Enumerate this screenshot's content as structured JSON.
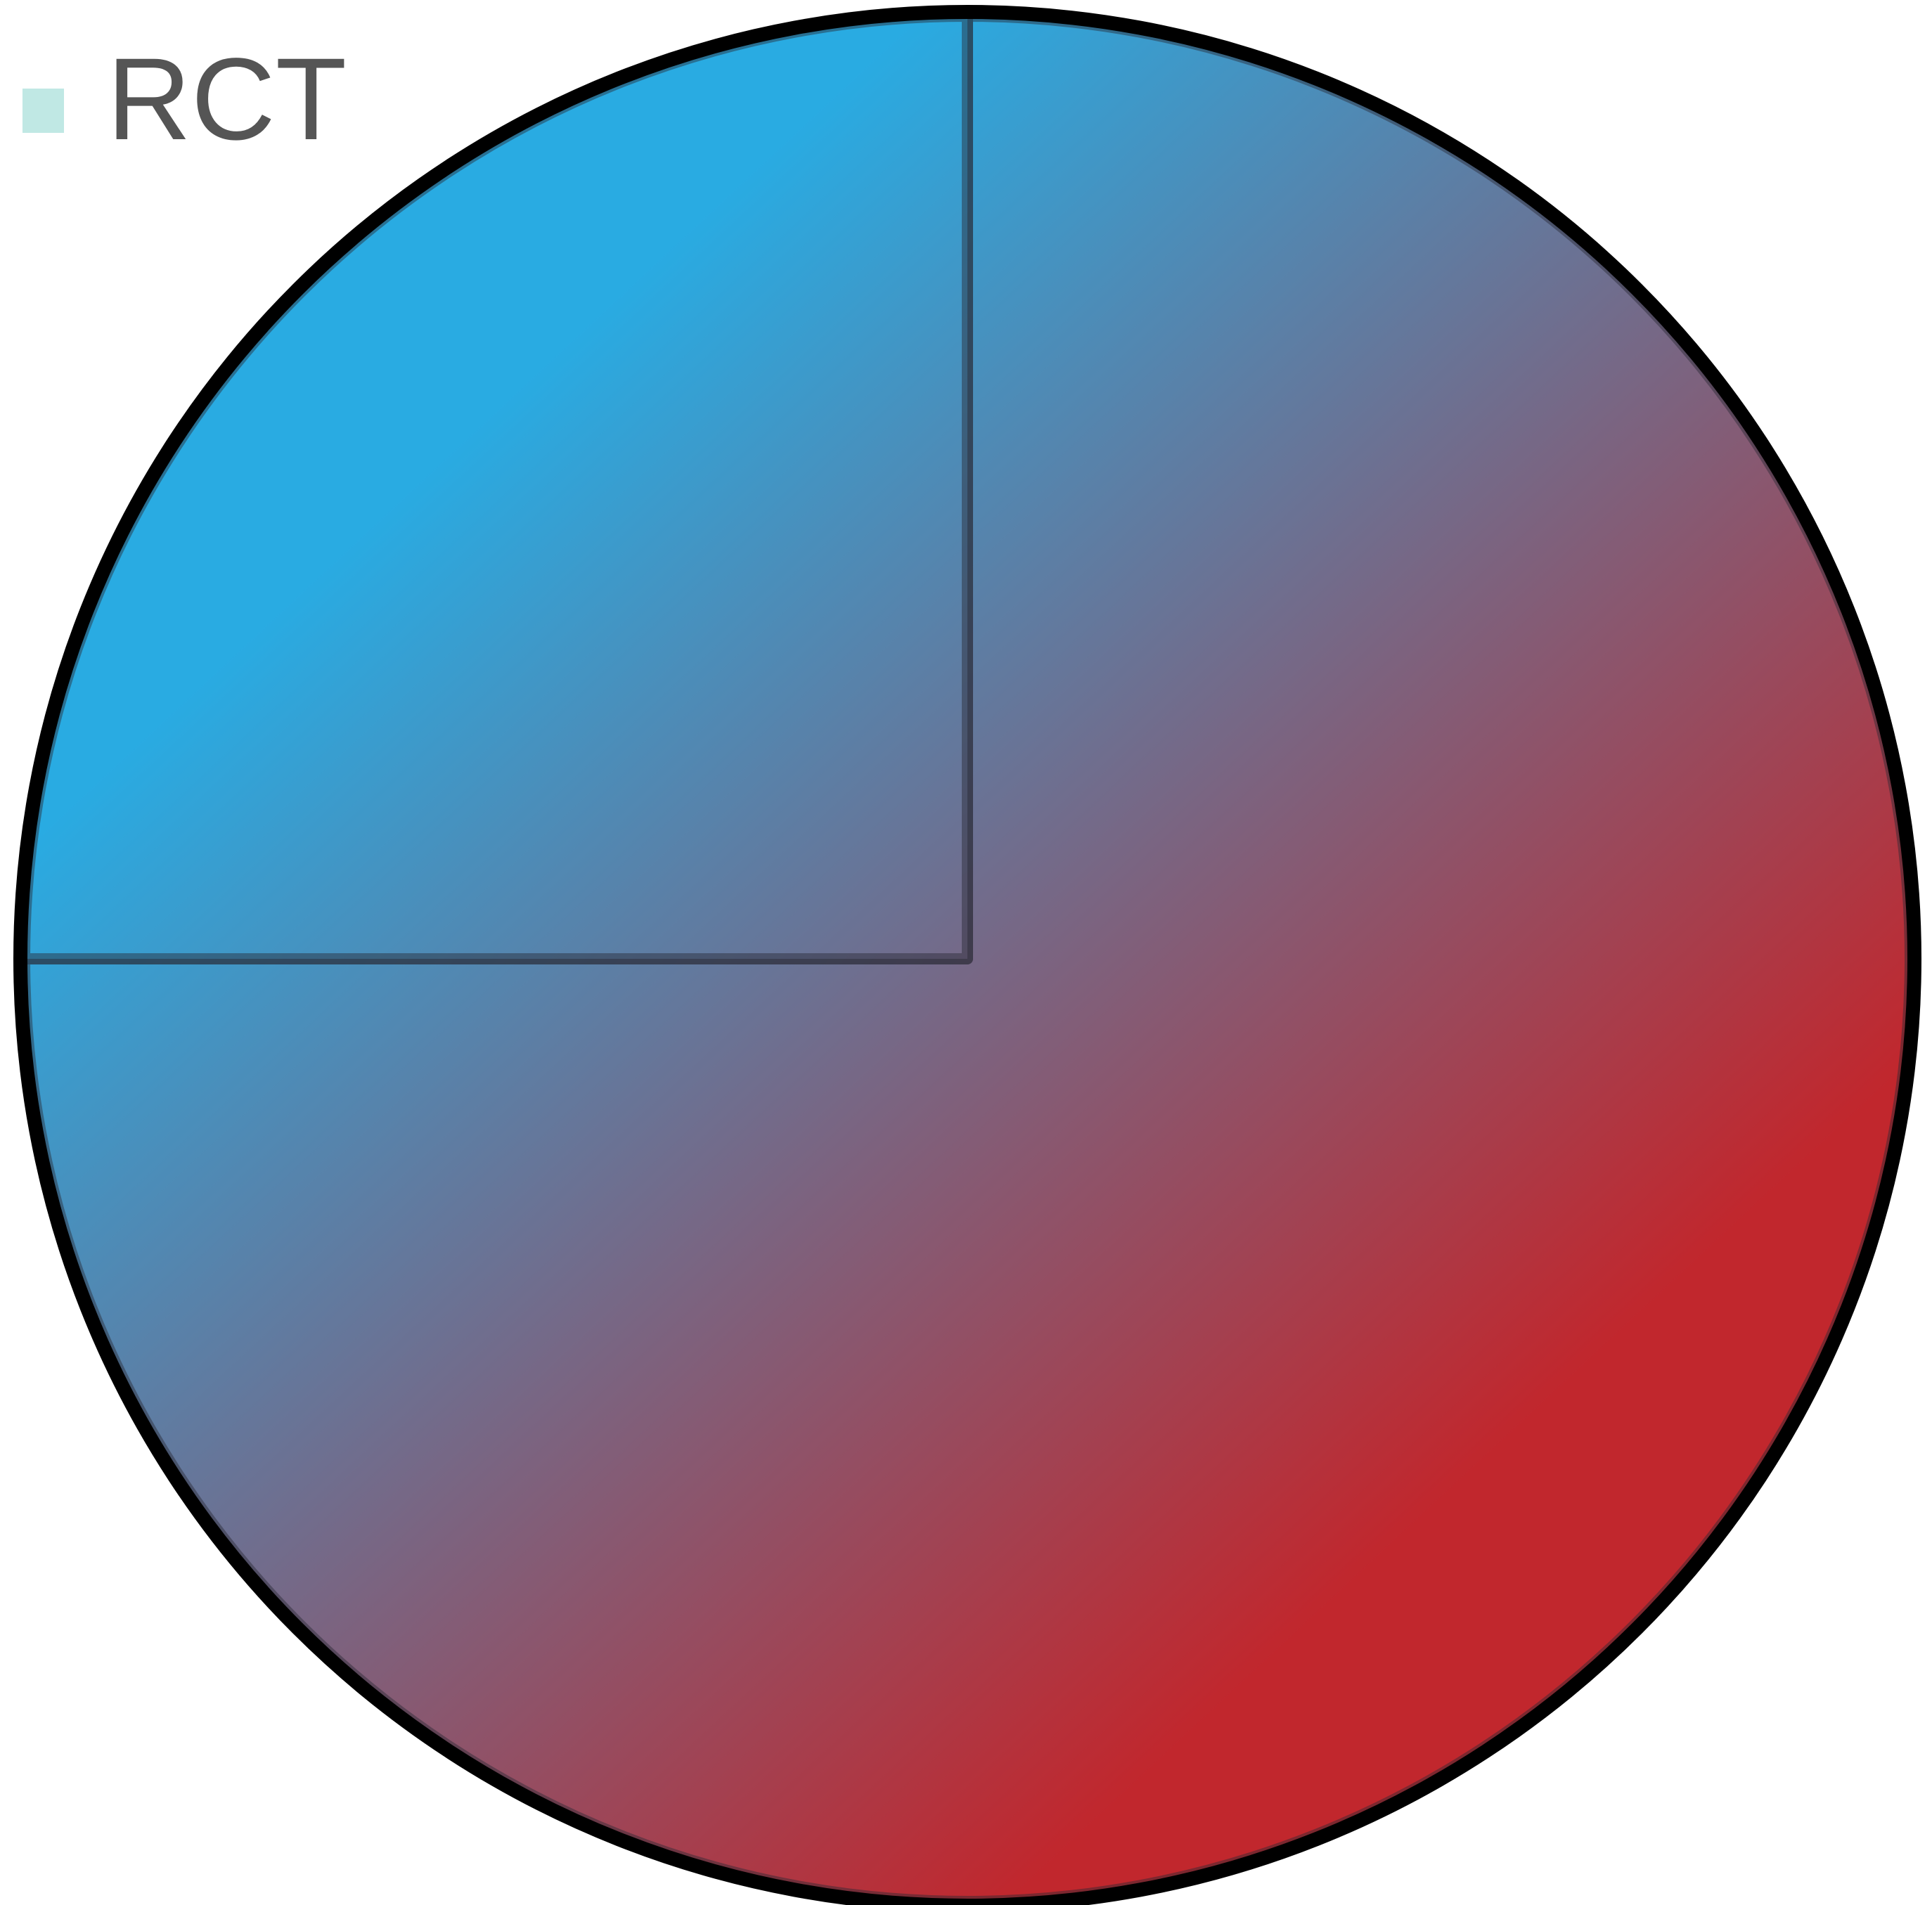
{
  "chart_data": {
    "type": "pie",
    "categories": [
      "RCT",
      null
    ],
    "values": [
      75,
      25
    ],
    "gradient": [
      "#29abe2",
      "#c1272d"
    ],
    "legend_color": "#c0e8e4",
    "legend": "top-left"
  }
}
